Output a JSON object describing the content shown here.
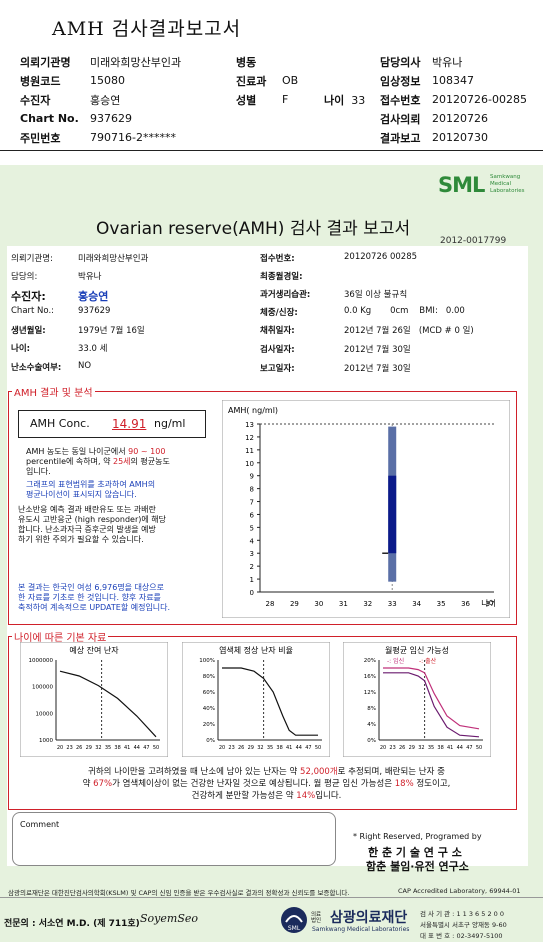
{
  "doc": {
    "title": "AMH 검사결과보고서"
  },
  "header": {
    "inst_label": "의뢰기관명",
    "inst": "미래와희망산부인과",
    "ward_label": "병동",
    "ward": "",
    "doctor_label": "담당의사",
    "doctor": "박유나",
    "code_label": "병원코드",
    "code": "15080",
    "dept_label": "진료과",
    "dept": "OB",
    "clinic_label": "임상정보",
    "clinic": "108347",
    "patient_label": "수진자",
    "patient": "홍승연",
    "sex_label": "성별",
    "sex": "F",
    "age_label": "나이",
    "age": "33",
    "recv_label": "접수번호",
    "recv": "20120726-00285",
    "chart_label": "Chart No.",
    "chart": "937629",
    "req_label": "검사의뢰",
    "req": "20120726",
    "rrn_label": "주민번호",
    "rrn": "790716-2******",
    "rep_label": "결과보고",
    "rep": "20120730"
  },
  "report": {
    "logo": "SML",
    "logo_sub": "Samkwang Medical Laboratories",
    "title": "Ovarian reserve(AMH) 검사 결과 보고서",
    "number": "2012-0017799",
    "inst_label": "의뢰기관명:",
    "inst": "미래와희망산부인과",
    "doctor_label": "담당의:",
    "doctor": "박유나",
    "patient_label": "수진자:",
    "patient": "홍승연",
    "chart_label": "Chart No.:",
    "chart": "937629",
    "dob_label": "생년월일:",
    "dob": "1979년 7월 16일",
    "age_label": "나이:",
    "age": "33.0 세",
    "surg_label": "난소수술여부:",
    "surg": "NO",
    "recv_label": "접수번호:",
    "recv": "20120726 00285",
    "lmp_label": "최종월경일:",
    "lmp": "",
    "men_label": "과거생리습관:",
    "men": "36일 이상 불규칙",
    "hw_label": "체중/신장:",
    "hw": "0.0 Kg       0cm    BMI:   0.00",
    "coll_label": "채취일자:",
    "coll": "2012년 7월 26일   (MCD # 0 일)",
    "test_label": "검사일자:",
    "test": "2012년 7월 30일",
    "rep_label": "보고일자:",
    "rep": "2012년 7월 30일"
  },
  "amh": {
    "section": "AMH 결과 및 분석",
    "conc_label": "AMH Conc.",
    "conc_value": "14.91",
    "conc_unit": "ng/ml",
    "p1a": "AMH 농도는 동일 나이군에서",
    "p1b": "90 ~ 100",
    "p1c": "percentile에 속하며, 약",
    "p1d": "25세",
    "p1e": "의 평균농도",
    "p1f": "입니다.",
    "p2a": "그래프의 표현범위를 초과하여 AMH의",
    "p2b": "평균나이선이 표시되지 않습니다.",
    "p3a": "난소반응 예측 결과 배란유도 또는 과배란",
    "p3b": "유도시 고반응군 (high responder)에 해당",
    "p3c": "합니다. 난소과자극 증후군의 발생을 예방",
    "p3d": "하기 위한 주의가 필요할 수 있습니다.",
    "p4a": "본 결과는 한국인 여성 6,976명을 대상으로",
    "p4b": "한 자료를 기초로 한 것입니다. 향후 자료를",
    "p4c": "축적하여 계속적으로 UPDATE할 예정입니다."
  },
  "chart_data": [
    {
      "type": "bar",
      "title": "",
      "ylabel": "AMH( ng/ml)",
      "xlabel": "나이",
      "x": [
        28,
        29,
        30,
        31,
        32,
        33,
        34,
        35,
        36,
        37
      ],
      "ylim": [
        0,
        13
      ],
      "y_ticks": [
        0,
        1,
        2,
        3,
        4,
        5,
        6,
        7,
        8,
        9,
        10,
        11,
        12,
        13
      ],
      "bar": {
        "x": 33,
        "range": [
          0.8,
          12.8
        ],
        "dark_range": [
          3,
          9
        ]
      },
      "patient_value": 14.91
    },
    {
      "type": "line",
      "title": "예상 잔여 난자",
      "y_ticks": [
        "1000000",
        "100000",
        "10000",
        "1000"
      ],
      "x_ticks": [
        20,
        23,
        26,
        29,
        32,
        35,
        38,
        41,
        44,
        47,
        50
      ],
      "marker_x": 33
    },
    {
      "type": "line",
      "title": "염색체 정상 난자 비율",
      "y_ticks": [
        "100%",
        "80%",
        "60%",
        "40%",
        "20%",
        "0%"
      ],
      "x_ticks": [
        20,
        23,
        26,
        29,
        32,
        35,
        38,
        41,
        44,
        47,
        50
      ],
      "marker_x": 33
    },
    {
      "type": "line",
      "title": "월평균 임신 가능성",
      "y_ticks": [
        "20%",
        "16%",
        "12%",
        "8%",
        "4%",
        "0%"
      ],
      "x_ticks": [
        20,
        23,
        26,
        29,
        32,
        35,
        38,
        41,
        44,
        47,
        50
      ],
      "marker_x": 33,
      "legend_a": "-: 임신",
      "legend_b": "-: 출산"
    }
  ],
  "basic": {
    "section": "나이에 따른 기본 자료",
    "s1a": "귀하의 나이만을 고려하였을 때 난소에 남아 있는 난자는 약",
    "s1b": "52,000개",
    "s1c": "로 추정되며, 배란되는 난자 중",
    "s2a": "약",
    "s2b": "67%",
    "s2c": "가 염색체이상이 없는 건강한 난자일 것으로 예상됩니다. 월 평균 임신 가능성은",
    "s2d": "18%",
    "s2e": "정도이고,",
    "s3a": "건강하게 분만할 가능성은 약",
    "s3b": "14%",
    "s3c": "입니다."
  },
  "comment": {
    "label": "Comment",
    "value": ""
  },
  "rights": {
    "a": "* Right Reserved, Programed by",
    "b": "한 춘  기 술  연 구 소",
    "c": "함춘 불임·유전 연구소"
  },
  "footer": {
    "note": "삼광의료재단은 대한진단검사의학회(KSLM) 및 CAP의 신임 인증을 받은 우수검사실로 결과의 정확성과 신뢰도를 보증합니다.",
    "cap": "CAP  Accredited  Laboratory,  69944-01",
    "signer": "전문의 : 서소연 M.D. (제 711호)",
    "sig": "SoyemSeo",
    "brand": "삼광의료재단",
    "brand_prefix": "의료 법인",
    "brand_en": "Samkwang Medical Laboratories",
    "reg": "검 사 기 관 : 1 1 3 6 5 2 0 0",
    "addr1": "서울특별시 서초구 양재동 9-60",
    "tel": "대 표 번 호 : 02-3497-5100"
  }
}
